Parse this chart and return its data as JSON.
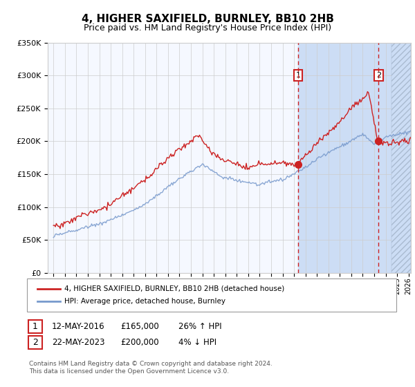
{
  "title": "4, HIGHER SAXIFIELD, BURNLEY, BB10 2HB",
  "subtitle": "Price paid vs. HM Land Registry's House Price Index (HPI)",
  "legend_line1": "4, HIGHER SAXIFIELD, BURNLEY, BB10 2HB (detached house)",
  "legend_line2": "HPI: Average price, detached house, Burnley",
  "transaction1_date": "12-MAY-2016",
  "transaction1_price": "£165,000",
  "transaction1_hpi": "26% ↑ HPI",
  "transaction1_year": 2016.37,
  "transaction1_value": 165000,
  "transaction2_date": "22-MAY-2023",
  "transaction2_price": "£200,000",
  "transaction2_hpi": "4% ↓ HPI",
  "transaction2_year": 2023.38,
  "transaction2_value": 200000,
  "footer1": "Contains HM Land Registry data © Crown copyright and database right 2024.",
  "footer2": "This data is licensed under the Open Government Licence v3.0.",
  "ylim": [
    0,
    350000
  ],
  "xlim_start": 1994.5,
  "xlim_end": 2026.2,
  "hatch_start": 2024.5,
  "shade_start": 2016.37,
  "shade_end": 2026.2,
  "red_color": "#cc2222",
  "blue_color": "#7799cc",
  "shade_color": "#ccddf5",
  "hatch_color": "#bbccee",
  "bg_color": "#f5f8ff",
  "plot_bg": "#ffffff",
  "grid_color": "#cccccc",
  "box_color": "#cc2222"
}
